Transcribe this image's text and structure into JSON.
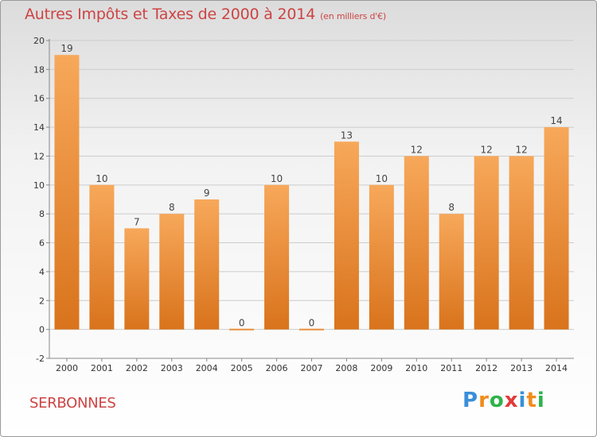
{
  "header": {
    "title": "Autres Impôts et Taxes de 2000 à 2014",
    "subtitle": "(en milliers d'€)"
  },
  "footer": {
    "commune": "SERBONNES",
    "logo_letters": [
      "P",
      "r",
      "o",
      "x",
      "i",
      "t",
      "i"
    ],
    "logo_colors": [
      "#3a8fd9",
      "#f08c1a",
      "#2db34a",
      "#e23a3a",
      "#3a8fd9",
      "#f08c1a",
      "#2db34a"
    ]
  },
  "colors": {
    "bar_light": "#f7a85a",
    "bar_dark": "#d9731c",
    "grid": "#cccccc",
    "axis": "#888888"
  },
  "chart_data": {
    "type": "bar",
    "title": "Autres Impôts et Taxes de 2000 à 2014",
    "subtitle": "(en milliers d'€)",
    "xlabel": "",
    "ylabel": "",
    "categories": [
      "2000",
      "2001",
      "2002",
      "2003",
      "2004",
      "2005",
      "2006",
      "2007",
      "2008",
      "2009",
      "2010",
      "2011",
      "2012",
      "2013",
      "2014"
    ],
    "values": [
      19,
      10,
      7,
      8,
      9,
      0,
      10,
      0,
      13,
      10,
      12,
      8,
      12,
      12,
      14
    ],
    "value_labels": [
      "19",
      "10",
      "7",
      "8",
      "9",
      "0",
      "10",
      "0",
      "13",
      "10",
      "12",
      "8",
      "12",
      "12",
      "14"
    ],
    "ylim": [
      -2,
      20
    ],
    "yticks": [
      -2,
      0,
      2,
      4,
      6,
      8,
      10,
      12,
      14,
      16,
      18,
      20
    ],
    "ytick_labels": [
      "-2",
      "0",
      "2",
      "4",
      "6",
      "8",
      "10",
      "12",
      "14",
      "16",
      "18",
      "20"
    ],
    "grid": true,
    "legend": "none"
  }
}
